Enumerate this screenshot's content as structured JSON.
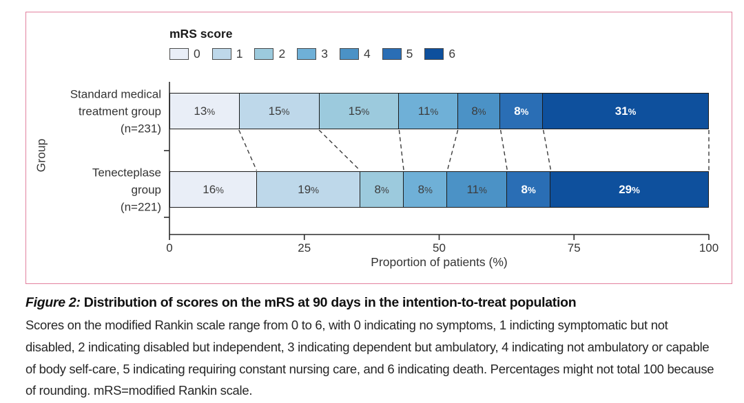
{
  "chart_data": {
    "type": "bar",
    "variant": "stacked-horizontal",
    "legend_title": "mRS score",
    "legend_position": "top-left",
    "xlabel": "Proportion of patients (%)",
    "ylabel": "Group",
    "xlim": [
      0,
      100
    ],
    "xticks": [
      0,
      25,
      50,
      75,
      100
    ],
    "grid": false,
    "value_suffix": "%",
    "connector_style": "dashed",
    "categories": [
      {
        "name": "Standard medical treatment group (n=231)",
        "label_lines": [
          "Standard medical",
          "treatment group",
          "(n=231)"
        ]
      },
      {
        "name": "Tenecteplase group (n=221)",
        "label_lines": [
          "Tenecteplase",
          "group",
          "(n=221)"
        ]
      }
    ],
    "series": [
      {
        "name": "0",
        "color": "#e9eef7",
        "values": [
          13,
          16
        ]
      },
      {
        "name": "1",
        "color": "#bed8ea",
        "values": [
          15,
          19
        ]
      },
      {
        "name": "2",
        "color": "#9ccadd",
        "values": [
          15,
          8
        ]
      },
      {
        "name": "3",
        "color": "#6fb0d7",
        "values": [
          11,
          8
        ]
      },
      {
        "name": "4",
        "color": "#4b92c6",
        "values": [
          8,
          11
        ]
      },
      {
        "name": "5",
        "color": "#2a6eb5",
        "values": [
          8,
          8
        ]
      },
      {
        "name": "6",
        "color": "#0e509d",
        "values": [
          31,
          29
        ]
      }
    ],
    "light_label_series": [
      "5",
      "6"
    ],
    "label_color_dark": "#3c3c3c",
    "label_color_light": "#ffffff"
  },
  "figure_box": {
    "border_color": "#e2809e"
  },
  "caption": {
    "heading_prefix": "Figure 2:",
    "heading_rest": " Distribution of scores on the mRS at 90 days in the intention-to-treat population",
    "body": "Scores on the modified Rankin scale range from 0 to 6, with 0 indicating no symptoms, 1 indicting symptomatic but not disabled, 2 indicating disabled but independent, 3 indicating dependent but ambulatory, 4 indicating not ambulatory or capable of body self-care, 5 indicating requiring constant nursing care, and 6 indicating death. Percentages might not total 100 because of rounding. mRS=modified Rankin scale."
  }
}
